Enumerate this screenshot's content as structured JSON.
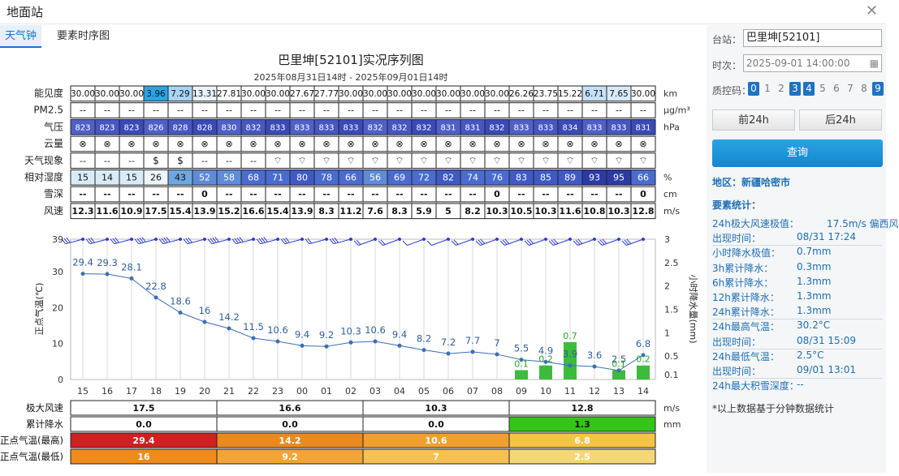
{
  "window": {
    "title": "地面站"
  },
  "tabs": [
    "天气钟",
    "要素时序图"
  ],
  "chart": {
    "title": "巴里坤[52101]实况序列图",
    "subtitle": "2025年08月31日14时 - 2025年09月01日14时"
  },
  "table": {
    "rows": [
      {
        "label": "能见度",
        "unit": "km",
        "values": [
          "30.00",
          "30.00",
          "30.00",
          "3.96",
          "7.29",
          "13.31",
          "27.81",
          "30.00",
          "30.00",
          "27.67",
          "27.77",
          "30.00",
          "30.00",
          "30.00",
          "30.00",
          "30.00",
          "30.00",
          "30.00",
          "26.26",
          "23.75",
          "15.22",
          "6.71",
          "7.65",
          "30.00"
        ],
        "colors": [
          "#fff",
          "#fff",
          "#fff",
          "#2aa6e8",
          "#a8d4f5",
          "#eaf4fd",
          "#fff",
          "#fff",
          "#fff",
          "#fff",
          "#fff",
          "#fff",
          "#fff",
          "#fff",
          "#fff",
          "#fff",
          "#fff",
          "#fff",
          "#fff",
          "#fff",
          "#fff",
          "#c4e1f8",
          "#d6eafa",
          "#fff"
        ]
      },
      {
        "label": "PM2.5",
        "unit": "μg/m³",
        "values": [
          "--",
          "--",
          "--",
          "--",
          "--",
          "--",
          "--",
          "--",
          "--",
          "--",
          "--",
          "--",
          "--",
          "--",
          "--",
          "--",
          "--",
          "--",
          "--",
          "--",
          "--",
          "--",
          "--",
          "--"
        ]
      },
      {
        "label": "气压",
        "unit": "hPa",
        "values": [
          "823",
          "823",
          "823",
          "826",
          "828",
          "828",
          "830",
          "832",
          "833",
          "833",
          "833",
          "833",
          "832",
          "832",
          "832",
          "831",
          "831",
          "832",
          "833",
          "833",
          "834",
          "833",
          "833",
          "831"
        ]
      },
      {
        "label": "云量",
        "unit": "",
        "values": [
          "⊗",
          "⊗",
          "⊗",
          "⊗",
          "⊗",
          "⊗",
          "⊗",
          "⊗",
          "⊗",
          "⊗",
          "⊗",
          "⊗",
          "⊗",
          "⊗",
          "⊗",
          "⊗",
          "⊗",
          "⊗",
          "⊗",
          "⊗",
          "⊗",
          "⊗",
          "⊗",
          "⊗"
        ]
      },
      {
        "label": "天气现象",
        "unit": "",
        "values": [
          "--",
          "--",
          "--",
          "$",
          "$",
          "--",
          "--",
          "--",
          "⌔",
          "⌔",
          "⌔",
          "⌔",
          "⌔",
          "⌔",
          "⌔",
          "⌔",
          "⌔",
          "⌔",
          "⌔",
          "⌔",
          "⌔",
          "⌔",
          "⌔",
          "⌔"
        ]
      },
      {
        "label": "相对湿度",
        "unit": "%",
        "values": [
          "15",
          "14",
          "15",
          "26",
          "43",
          "52",
          "58",
          "68",
          "71",
          "80",
          "78",
          "66",
          "56",
          "69",
          "72",
          "82",
          "74",
          "76",
          "83",
          "85",
          "89",
          "93",
          "95",
          "66"
        ]
      },
      {
        "label": "雪深",
        "unit": "cm",
        "values": [
          "--",
          "--",
          "--",
          "--",
          "--",
          "0",
          "--",
          "--",
          "--",
          "--",
          "--",
          "--",
          "--",
          "--",
          "--",
          "--",
          "--",
          "0",
          "--",
          "--",
          "--",
          "--",
          "--",
          "0"
        ]
      },
      {
        "label": "风速",
        "unit": "m/s",
        "values": [
          "12.3",
          "11.6",
          "10.9",
          "17.5",
          "15.4",
          "13.9",
          "15.2",
          "16.6",
          "15.4",
          "13.9",
          "8.3",
          "11.2",
          "7.6",
          "8.3",
          "5.9",
          "5",
          "8.2",
          "10.3",
          "10.5",
          "10.3",
          "11.6",
          "10.8",
          "10.3",
          "12.8"
        ]
      }
    ]
  },
  "chart_data": {
    "type": "line",
    "x": [
      "15",
      "16",
      "17",
      "18",
      "19",
      "20",
      "21",
      "22",
      "23",
      "00",
      "01",
      "02",
      "03",
      "04",
      "05",
      "06",
      "07",
      "08",
      "09",
      "10",
      "11",
      "12",
      "13",
      "14"
    ],
    "series": [
      {
        "values": [
          29.4,
          29.3,
          28.1,
          22.8,
          18.6,
          16,
          14.2,
          11.5,
          10.6,
          9.4,
          9.2,
          10.3,
          10.6,
          9.4,
          8.2,
          7.2,
          7.7,
          7,
          5.5,
          4.9,
          3.9,
          3.6,
          2.5,
          6.8
        ]
      },
      {
        "type": "bar",
        "values": [
          0,
          0,
          0,
          0,
          0,
          0,
          0,
          0,
          0,
          0,
          0,
          0,
          0,
          0,
          0,
          0,
          0,
          0,
          0.1,
          0.2,
          0.7,
          0,
          0.1,
          0.2
        ]
      }
    ],
    "ylabel": "正点气温(℃)",
    "y2label": "小时降水量(mm)",
    "y_ticks": [
      "0",
      "10",
      "20",
      "30",
      "39"
    ],
    "y2_ticks": [
      "0.1",
      "0.5",
      "1",
      "1.5",
      "2",
      "2.5",
      "3"
    ],
    "ylim": [
      0,
      39
    ],
    "y2lim": [
      0,
      3
    ],
    "colors": {
      "line": "#3b6fb5",
      "bar": "#3dbb3d",
      "wind": "#2c3cd0"
    }
  },
  "summary": {
    "labels": [
      "极大风速",
      "累计降水",
      "正点气温(最高)",
      "正点气温(最低)"
    ],
    "units": [
      "m/s",
      "mm",
      ""
    ],
    "rows": [
      [
        "17.5",
        "16.6",
        "10.3",
        "12.8"
      ],
      [
        "0.0",
        "0.0",
        "0.0",
        "1.3"
      ],
      [
        "29.4",
        "14.2",
        "10.6",
        "6.8"
      ],
      [
        "16",
        "9.2",
        "7",
        "2.5"
      ]
    ]
  },
  "side": {
    "station_label": "台站：",
    "station_value": "巴里坤[52101]",
    "time_label": "时次：",
    "time_value": "2025-09-01 14:00:00",
    "qc_label": "质控码：",
    "qc_codes": [
      "0",
      "1",
      "2",
      "3",
      "4",
      "5",
      "6",
      "7",
      "8",
      "9"
    ],
    "prev_btn": "前24h",
    "next_btn": "后24h",
    "query_btn": "查询",
    "region": "地区：新疆哈密市",
    "stats_title": "要素统计：",
    "stats": [
      {
        "k": "24h极大风速极值：",
        "v": "17.5m/s 偏西风"
      },
      {
        "k": "出现时间：",
        "v": "08/31 17:24"
      },
      {
        "k": "小时降水极值：",
        "v": "0.7mm"
      },
      {
        "k": "3h累计降水：",
        "v": "0.3mm"
      },
      {
        "k": "6h累计降水：",
        "v": "1.3mm"
      },
      {
        "k": "12h累计降水：",
        "v": "1.3mm"
      },
      {
        "k": "24h累计降水：",
        "v": "1.3mm"
      },
      {
        "k": "24h最高气温：",
        "v": "30.2°C"
      },
      {
        "k": "出现时间：",
        "v": "08/31 15:09"
      },
      {
        "k": "24h最低气温：",
        "v": "2.5°C"
      },
      {
        "k": "出现时间：",
        "v": "09/01 13:01"
      },
      {
        "k": "24h最大积雪深度：",
        "v": "--"
      }
    ],
    "note": "*以上数据基于分钟数据统计"
  }
}
